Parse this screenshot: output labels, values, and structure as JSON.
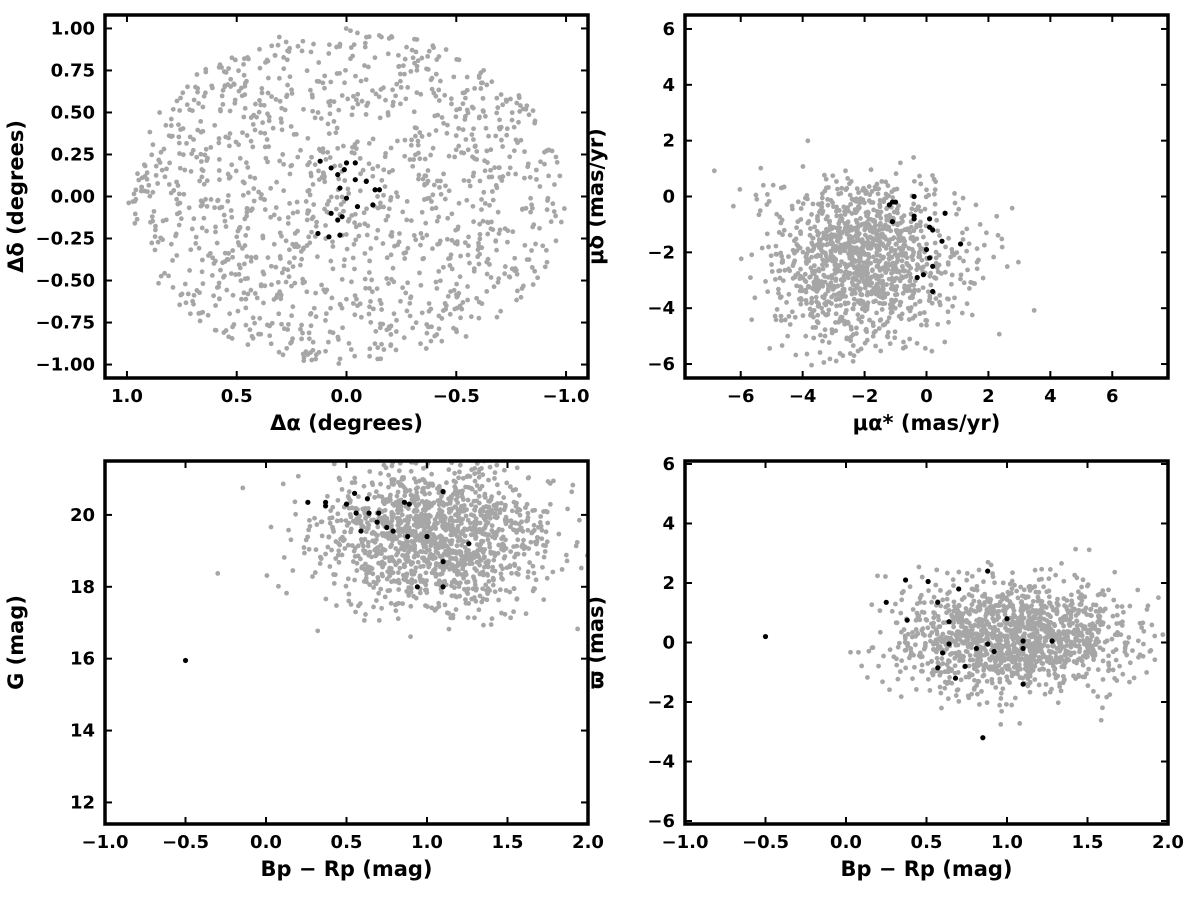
{
  "chart_data": [
    {
      "id": "sky",
      "type": "scatter",
      "xlabel": "Δα (degrees)",
      "ylabel": "Δδ (degrees)",
      "xlim": [
        1.1,
        -1.1
      ],
      "ylim": [
        -1.08,
        1.08
      ],
      "xticks": [
        1.0,
        0.5,
        0.0,
        -0.5,
        -1.0
      ],
      "xtick_labels": [
        "1.0",
        "0.5",
        "0.0",
        "−0.5",
        "−1.0"
      ],
      "yticks": [
        1.0,
        0.75,
        0.5,
        0.25,
        0.0,
        -0.25,
        -0.5,
        -0.75,
        -1.0
      ],
      "ytick_labels": [
        "1.00",
        "0.75",
        "0.50",
        "0.25",
        "0.00",
        "−0.25",
        "−0.50",
        "−0.75",
        "−1.00"
      ],
      "background": {
        "distribution": "uniform disk",
        "center": [
          0,
          0
        ],
        "radius_x": 1.0,
        "radius_y": 1.0,
        "count": 1300
      },
      "members": [
        [
          0.12,
          0.21
        ],
        [
          0.07,
          0.17
        ],
        [
          0.04,
          0.13
        ],
        [
          0.0,
          0.2
        ],
        [
          -0.04,
          0.2
        ],
        [
          0.01,
          0.16
        ],
        [
          -0.04,
          0.1
        ],
        [
          0.03,
          0.05
        ],
        [
          0.0,
          -0.01
        ],
        [
          -0.09,
          0.09
        ],
        [
          -0.13,
          0.04
        ],
        [
          -0.15,
          0.04
        ],
        [
          -0.05,
          -0.06
        ],
        [
          -0.12,
          -0.05
        ],
        [
          0.07,
          -0.1
        ],
        [
          0.02,
          -0.12
        ],
        [
          0.04,
          -0.14
        ],
        [
          0.03,
          -0.23
        ],
        [
          0.08,
          -0.24
        ],
        [
          0.13,
          -0.22
        ]
      ]
    },
    {
      "id": "pm",
      "type": "scatter",
      "xlabel": "μα* (mas/yr)",
      "ylabel": "μδ (mas/yr)",
      "xlim": [
        -7.8,
        7.8
      ],
      "ylim": [
        -6.5,
        6.5
      ],
      "xticks": [
        -6,
        -4,
        -2,
        0,
        2,
        4,
        6
      ],
      "xtick_labels": [
        "−6",
        "−4",
        "−2",
        "0",
        "2",
        "4",
        "6"
      ],
      "yticks": [
        -6,
        -4,
        -2,
        0,
        2,
        4,
        6
      ],
      "ytick_labels": [
        "−6",
        "−4",
        "−2",
        "0",
        "2",
        "4",
        "6"
      ],
      "background": {
        "distribution": "cluster",
        "center": [
          -2.0,
          -2.3
        ],
        "spread": [
          1.5,
          1.4
        ],
        "count": 1300
      },
      "members": [
        [
          -1.1,
          -0.2
        ],
        [
          -1.2,
          -0.3
        ],
        [
          -0.4,
          0.0
        ],
        [
          0.6,
          -0.6
        ],
        [
          -0.4,
          -0.7
        ],
        [
          -0.4,
          -0.8
        ],
        [
          -1.1,
          -0.9
        ],
        [
          0.1,
          -0.8
        ],
        [
          0.1,
          -1.1
        ],
        [
          0.2,
          -1.2
        ],
        [
          1.1,
          -1.7
        ],
        [
          0.5,
          -1.6
        ],
        [
          0.0,
          -1.9
        ],
        [
          0.1,
          -2.2
        ],
        [
          0.2,
          -2.5
        ],
        [
          -0.1,
          -2.8
        ],
        [
          -0.3,
          -2.9
        ],
        [
          0.2,
          -3.4
        ],
        [
          -1.0,
          -0.2
        ]
      ]
    },
    {
      "id": "cmd",
      "type": "scatter",
      "xlabel": "Bp − Rp (mag)",
      "ylabel": "G (mag)",
      "xlim": [
        -1.0,
        2.0
      ],
      "ylim": [
        11.4,
        21.5
      ],
      "xticks": [
        -1.0,
        -0.5,
        0.0,
        0.5,
        1.0,
        1.5,
        2.0
      ],
      "xtick_labels": [
        "−1.0",
        "−0.5",
        "0.0",
        "0.5",
        "1.0",
        "1.5",
        "2.0"
      ],
      "yticks": [
        12,
        14,
        16,
        18,
        20
      ],
      "ytick_labels": [
        "12",
        "14",
        "16",
        "18",
        "20"
      ],
      "background": {
        "distribution": "cluster",
        "center": [
          1.05,
          19.4
        ],
        "spread": [
          0.35,
          1.0
        ],
        "count": 1400
      },
      "members": [
        [
          -0.5,
          15.95
        ],
        [
          0.26,
          20.35
        ],
        [
          0.37,
          20.35
        ],
        [
          0.37,
          20.25
        ],
        [
          0.5,
          20.3
        ],
        [
          0.55,
          20.6
        ],
        [
          0.56,
          20.05
        ],
        [
          0.59,
          19.55
        ],
        [
          0.63,
          20.45
        ],
        [
          0.64,
          20.05
        ],
        [
          0.69,
          19.8
        ],
        [
          0.7,
          20.05
        ],
        [
          0.75,
          19.65
        ],
        [
          0.79,
          19.55
        ],
        [
          0.86,
          20.35
        ],
        [
          0.89,
          20.3
        ],
        [
          0.88,
          19.4
        ],
        [
          0.94,
          18.0
        ],
        [
          1.0,
          19.4
        ],
        [
          1.1,
          20.65
        ],
        [
          1.1,
          18.7
        ],
        [
          1.1,
          18.0
        ],
        [
          1.26,
          19.2
        ]
      ]
    },
    {
      "id": "parallax",
      "type": "scatter",
      "xlabel": "Bp − Rp (mag)",
      "ylabel": "ϖ (mas)",
      "xlim": [
        -1.0,
        2.0
      ],
      "ylim": [
        -6.1,
        6.1
      ],
      "xticks": [
        -1.0,
        -0.5,
        0.0,
        0.5,
        1.0,
        1.5,
        2.0
      ],
      "xtick_labels": [
        "−1.0",
        "−0.5",
        "0.0",
        "0.5",
        "1.0",
        "1.5",
        "2.0"
      ],
      "yticks": [
        -6,
        -4,
        -2,
        0,
        2,
        4,
        6
      ],
      "ytick_labels": [
        "−6",
        "−4",
        "−2",
        "0",
        "2",
        "4",
        "6"
      ],
      "background": {
        "distribution": "cluster",
        "center": [
          1.05,
          0.2
        ],
        "spread": [
          0.35,
          0.9
        ],
        "count": 1400
      },
      "members": [
        [
          -0.5,
          0.2
        ],
        [
          0.25,
          1.35
        ],
        [
          0.37,
          2.1
        ],
        [
          0.38,
          0.75
        ],
        [
          0.51,
          2.05
        ],
        [
          0.57,
          1.35
        ],
        [
          0.57,
          -0.85
        ],
        [
          0.6,
          -0.35
        ],
        [
          0.64,
          0.7
        ],
        [
          0.64,
          -0.05
        ],
        [
          0.68,
          -1.2
        ],
        [
          0.7,
          1.8
        ],
        [
          0.74,
          -0.8
        ],
        [
          0.81,
          -0.2
        ],
        [
          0.85,
          -3.2
        ],
        [
          0.88,
          2.4
        ],
        [
          0.88,
          -0.05
        ],
        [
          0.92,
          -0.3
        ],
        [
          1.0,
          0.8
        ],
        [
          1.1,
          0.05
        ],
        [
          1.1,
          -0.2
        ],
        [
          1.1,
          -1.4
        ],
        [
          1.28,
          0.05
        ]
      ]
    }
  ]
}
